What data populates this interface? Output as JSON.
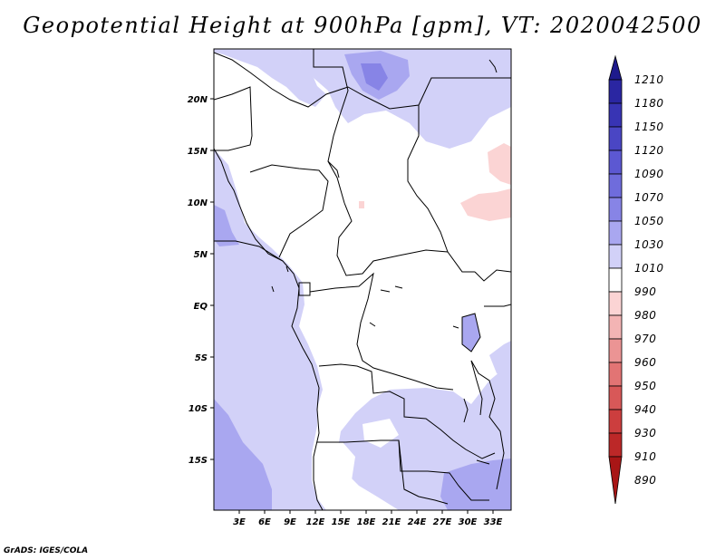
{
  "title": "Geopotential Height at 900hPa [gpm], VT: 2020042500",
  "credit": "GrADS: IGES/COLA",
  "chart_data": {
    "type": "heatmap",
    "variable": "Geopotential Height",
    "level": "900hPa",
    "units": "gpm",
    "valid_time": "2020042500",
    "lat_ticks": [
      "20N",
      "15N",
      "10N",
      "5N",
      "EQ",
      "5S",
      "10S",
      "15S"
    ],
    "lon_ticks": [
      "3E",
      "6E",
      "9E",
      "12E",
      "15E",
      "18E",
      "21E",
      "24E",
      "27E",
      "30E",
      "33E"
    ],
    "colorbar": {
      "levels": [
        "1210",
        "1180",
        "1150",
        "1120",
        "1090",
        "1070",
        "1050",
        "1030",
        "1010",
        "990",
        "980",
        "970",
        "960",
        "950",
        "940",
        "930",
        "910",
        "890"
      ],
      "colors": [
        "#1e1a8c",
        "#2a26a2",
        "#3834b4",
        "#4a46c4",
        "#5c58d2",
        "#6f6cdc",
        "#8784e6",
        "#a9a7f0",
        "#d2d1f8",
        "#ffffff",
        "#fbd4d4",
        "#f3b4b4",
        "#eb9494",
        "#e27474",
        "#d85858",
        "#cc3e3e",
        "#bc2828",
        "#a81616"
      ]
    }
  }
}
